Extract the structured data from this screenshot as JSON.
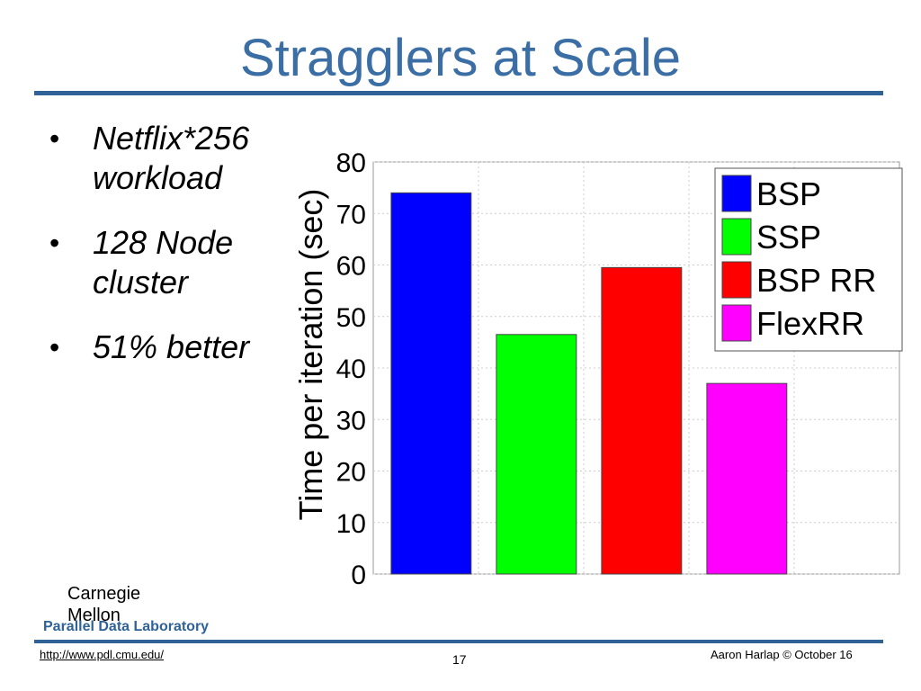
{
  "slide": {
    "title": "Stragglers at Scale",
    "bullets": [
      {
        "text": "Netflix*256 workload"
      },
      {
        "text": "128 Node cluster"
      },
      {
        "text": "51% better"
      }
    ]
  },
  "footer": {
    "logo_text": "Carnegie Mellon",
    "lab": "Parallel Data Laboratory",
    "url": "http://www.pdl.cmu.edu/",
    "page": "17",
    "credit": "Aaron Harlap © October 16"
  },
  "chart_data": {
    "type": "bar",
    "categories": [
      "BSP",
      "SSP",
      "BSP RR",
      "FlexRR"
    ],
    "series": [
      {
        "name": "Time per iteration",
        "values": [
          74,
          46.5,
          59.5,
          37
        ]
      }
    ],
    "colors": [
      "#0000ff",
      "#00ff00",
      "#ff0000",
      "#ff00ff"
    ],
    "ylabel": "Time per iteration (sec)",
    "ylim": [
      0,
      80
    ],
    "yticks": [
      0,
      10,
      20,
      30,
      40,
      50,
      60,
      70,
      80
    ],
    "legend": {
      "placement": "top-right",
      "entries": [
        "BSP",
        "SSP",
        "BSP RR",
        "FlexRR"
      ]
    },
    "grid": true
  }
}
